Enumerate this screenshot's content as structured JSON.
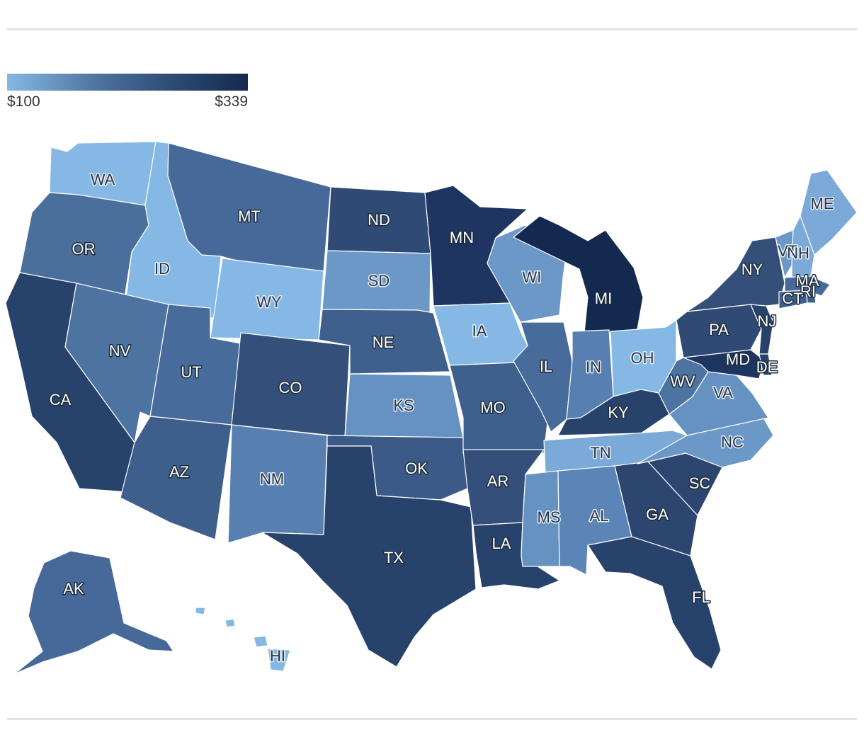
{
  "legend": {
    "min_label": "$100",
    "max_label": "$339",
    "min_value": 100,
    "max_value": 339,
    "colors": [
      "#85b8e4",
      "#4a6f9c",
      "#2b4a74",
      "#14294f"
    ]
  },
  "states": [
    {
      "abbr": "WA",
      "fill": "#85b8e4",
      "text": "light"
    },
    {
      "abbr": "OR",
      "fill": "#4a6f9c",
      "text": "dark"
    },
    {
      "abbr": "CA",
      "fill": "#28436b",
      "text": "dark"
    },
    {
      "abbr": "ID",
      "fill": "#85b8e4",
      "text": "light"
    },
    {
      "abbr": "NV",
      "fill": "#4d73a1",
      "text": "dark"
    },
    {
      "abbr": "MT",
      "fill": "#46699a",
      "text": "dark"
    },
    {
      "abbr": "WY",
      "fill": "#85b8e4",
      "text": "light"
    },
    {
      "abbr": "UT",
      "fill": "#476b9b",
      "text": "dark"
    },
    {
      "abbr": "AZ",
      "fill": "#3e5e8c",
      "text": "dark"
    },
    {
      "abbr": "CO",
      "fill": "#334f7a",
      "text": "dark"
    },
    {
      "abbr": "NM",
      "fill": "#5780b0",
      "text": "light"
    },
    {
      "abbr": "ND",
      "fill": "#2f4a74",
      "text": "dark"
    },
    {
      "abbr": "SD",
      "fill": "#6b98c6",
      "text": "light"
    },
    {
      "abbr": "NE",
      "fill": "#3f5f8d",
      "text": "dark"
    },
    {
      "abbr": "KS",
      "fill": "#6692c2",
      "text": "light"
    },
    {
      "abbr": "OK",
      "fill": "#3b5a88",
      "text": "dark"
    },
    {
      "abbr": "TX",
      "fill": "#28436b",
      "text": "dark"
    },
    {
      "abbr": "MN",
      "fill": "#1d3560",
      "text": "dark"
    },
    {
      "abbr": "IA",
      "fill": "#85b8e4",
      "text": "light"
    },
    {
      "abbr": "MO",
      "fill": "#3f5f8d",
      "text": "dark"
    },
    {
      "abbr": "AR",
      "fill": "#334f7a",
      "text": "dark"
    },
    {
      "abbr": "LA",
      "fill": "#28436b",
      "text": "dark"
    },
    {
      "abbr": "WI",
      "fill": "#6b98c6",
      "text": "light"
    },
    {
      "abbr": "IL",
      "fill": "#476b9b",
      "text": "dark"
    },
    {
      "abbr": "MI",
      "fill": "#14294f",
      "text": "dark"
    },
    {
      "abbr": "IN",
      "fill": "#5780b0",
      "text": "light"
    },
    {
      "abbr": "OH",
      "fill": "#85b8e4",
      "text": "light"
    },
    {
      "abbr": "KY",
      "fill": "#28436b",
      "text": "dark"
    },
    {
      "abbr": "TN",
      "fill": "#7ba9d8",
      "text": "light"
    },
    {
      "abbr": "MS",
      "fill": "#6692c2",
      "text": "light"
    },
    {
      "abbr": "AL",
      "fill": "#5a85b6",
      "text": "light"
    },
    {
      "abbr": "GA",
      "fill": "#2c4670",
      "text": "dark"
    },
    {
      "abbr": "FL",
      "fill": "#28436b",
      "text": "dark"
    },
    {
      "abbr": "SC",
      "fill": "#2c4670",
      "text": "dark"
    },
    {
      "abbr": "NC",
      "fill": "#6b98c6",
      "text": "light"
    },
    {
      "abbr": "VA",
      "fill": "#6692c2",
      "text": "light"
    },
    {
      "abbr": "WV",
      "fill": "#4d73a1",
      "text": "dark"
    },
    {
      "abbr": "MD",
      "fill": "#1d3560",
      "text": "dark"
    },
    {
      "abbr": "PA",
      "fill": "#2f4a74",
      "text": "dark"
    },
    {
      "abbr": "NJ",
      "fill": "#28436b",
      "text": "dark"
    },
    {
      "abbr": "NY",
      "fill": "#334f7a",
      "text": "dark"
    },
    {
      "abbr": "VT",
      "fill": "#6b98c6",
      "text": "light"
    },
    {
      "abbr": "NH",
      "fill": "#7ba9d8",
      "text": "light"
    },
    {
      "abbr": "ME",
      "fill": "#7ba9d8",
      "text": "light"
    },
    {
      "abbr": "MA",
      "fill": "#46699a",
      "text": "dark"
    },
    {
      "abbr": "RI",
      "fill": "#3e5e8c",
      "text": "dark"
    },
    {
      "abbr": "CT",
      "fill": "#3e5e8c",
      "text": "dark"
    },
    {
      "abbr": "DE",
      "fill": "#28436b",
      "text": "dark"
    },
    {
      "abbr": "AK",
      "fill": "#46699a",
      "text": "dark"
    },
    {
      "abbr": "HI",
      "fill": "#85b8e4",
      "text": "light"
    }
  ]
}
